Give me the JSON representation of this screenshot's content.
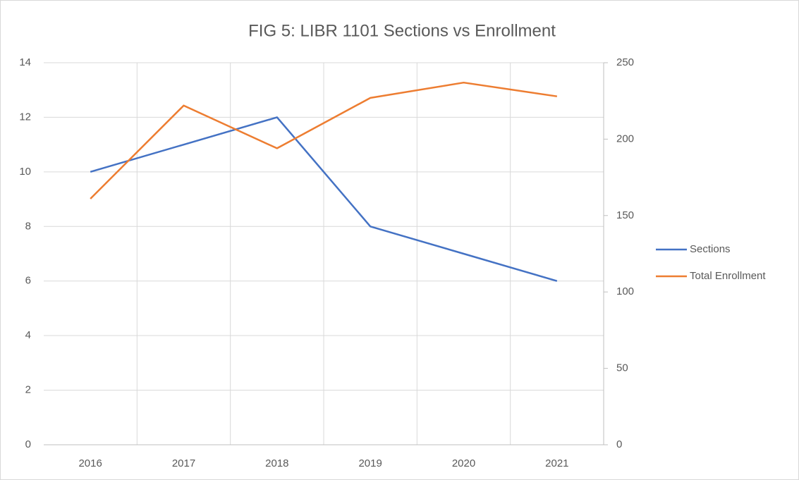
{
  "chart_data": {
    "type": "line",
    "title": "FIG 5: LIBR 1101 Sections vs Enrollment",
    "categories": [
      "2016",
      "2017",
      "2018",
      "2019",
      "2020",
      "2021"
    ],
    "series": [
      {
        "name": "Sections",
        "color": "#4472c4",
        "values": [
          10,
          11,
          12,
          8,
          7,
          6
        ]
      },
      {
        "name": "Total Enrollment",
        "color": "#ed7d31",
        "axis": "y2",
        "values": [
          161,
          222,
          194,
          227,
          237,
          228
        ]
      }
    ],
    "ylim": [
      0,
      14
    ],
    "yticks": [
      0,
      2,
      4,
      6,
      8,
      10,
      12,
      14
    ],
    "y2lim": [
      0,
      250
    ],
    "y2ticks": [
      0,
      50,
      100,
      150,
      200,
      250
    ],
    "grid": true,
    "legend": "right"
  }
}
